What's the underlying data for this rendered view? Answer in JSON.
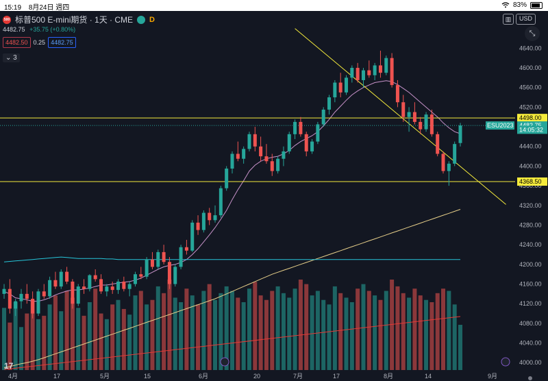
{
  "status_bar": {
    "time": "15:19",
    "date": "8月24日 週四",
    "wifi_icon": "wifi",
    "battery_percent": "83%",
    "battery_level": 0.83
  },
  "header": {
    "symbol_logo": "500",
    "title": "标普500 E-mini期货 · 1天 · CME",
    "market_badge": "D",
    "last_price": "4482.75",
    "change": "+35.75 (+0.80%)",
    "bid": "4482.50",
    "spread": "0.25",
    "ask": "4482.75",
    "collapse_count": "3"
  },
  "toolbar": {
    "currency": "USD",
    "chart_type_icon": "candle-icon",
    "expand_icon": "expand-icon"
  },
  "price_axis": {
    "ticks": [
      "4640.00",
      "4600.00",
      "4560.00",
      "4520.00",
      "4480.00",
      "4440.00",
      "4400.00",
      "4360.00",
      "4320.00",
      "4280.00",
      "4240.00",
      "4200.00",
      "4160.00",
      "4120.00",
      "4080.00",
      "4040.00",
      "4000.00"
    ],
    "labels": [
      {
        "text": "4498.00",
        "kind": "hline",
        "price": 4498
      },
      {
        "text": "4482.75",
        "kind": "last",
        "price": 4482.75
      },
      {
        "text": "14:05:32",
        "kind": "countdown",
        "price": 4474
      },
      {
        "text": "4368.50",
        "kind": "hline",
        "price": 4368.5
      }
    ],
    "contract_label": "ESU2023"
  },
  "time_axis": {
    "labels": [
      "4月",
      "17",
      "5月",
      "15",
      "6月",
      "20",
      "7月",
      "17",
      "8月",
      "14",
      "9月"
    ]
  },
  "colors": {
    "up": "#26a69a",
    "down": "#ef5350",
    "hline": "#f5eb3c",
    "trend": "#f5eb3c",
    "ma_short": "#c792c9",
    "ma_long": "#e8d08a",
    "ma_red": "#e53935",
    "blue_line": "#26c6da",
    "bg": "#131722"
  },
  "chart_data": {
    "type": "candlestick",
    "title": "标普500 E-mini期货 · 1天 · CME",
    "ylim": [
      3985,
      4660
    ],
    "horizontal_lines": [
      4498,
      4368.5
    ],
    "candles_ohlc": [
      [
        4140,
        4160,
        4130,
        4150
      ],
      [
        4150,
        4170,
        4100,
        4110
      ],
      [
        4110,
        4130,
        4095,
        4125
      ],
      [
        4125,
        4150,
        4110,
        4140
      ],
      [
        4140,
        4160,
        4120,
        4130
      ],
      [
        4130,
        4145,
        4090,
        4100
      ],
      [
        4100,
        4150,
        4095,
        4145
      ],
      [
        4145,
        4160,
        4130,
        4135
      ],
      [
        4135,
        4175,
        4130,
        4168
      ],
      [
        4168,
        4185,
        4150,
        4155
      ],
      [
        4155,
        4190,
        4150,
        4185
      ],
      [
        4185,
        4195,
        4160,
        4165
      ],
      [
        4165,
        4170,
        4110,
        4120
      ],
      [
        4120,
        4160,
        4115,
        4155
      ],
      [
        4155,
        4170,
        4140,
        4150
      ],
      [
        4150,
        4180,
        4145,
        4178
      ],
      [
        4178,
        4190,
        4165,
        4170
      ],
      [
        4170,
        4180,
        4140,
        4145
      ],
      [
        4145,
        4160,
        4135,
        4155
      ],
      [
        4155,
        4165,
        4140,
        4148
      ],
      [
        4148,
        4170,
        4140,
        4165
      ],
      [
        4165,
        4175,
        4145,
        4150
      ],
      [
        4150,
        4165,
        4135,
        4160
      ],
      [
        4160,
        4185,
        4155,
        4180
      ],
      [
        4180,
        4195,
        4170,
        4175
      ],
      [
        4175,
        4215,
        4170,
        4210
      ],
      [
        4210,
        4225,
        4190,
        4195
      ],
      [
        4195,
        4230,
        4190,
        4225
      ],
      [
        4225,
        4240,
        4200,
        4205
      ],
      [
        4205,
        4215,
        4150,
        4160
      ],
      [
        4160,
        4200,
        4155,
        4195
      ],
      [
        4195,
        4240,
        4190,
        4235
      ],
      [
        4235,
        4250,
        4220,
        4228
      ],
      [
        4228,
        4290,
        4225,
        4285
      ],
      [
        4285,
        4300,
        4260,
        4270
      ],
      [
        4270,
        4310,
        4265,
        4305
      ],
      [
        4305,
        4315,
        4280,
        4290
      ],
      [
        4290,
        4320,
        4285,
        4300
      ],
      [
        4300,
        4360,
        4295,
        4355
      ],
      [
        4355,
        4400,
        4350,
        4395
      ],
      [
        4395,
        4430,
        4385,
        4425
      ],
      [
        4425,
        4450,
        4410,
        4415
      ],
      [
        4415,
        4440,
        4405,
        4435
      ],
      [
        4435,
        4470,
        4430,
        4465
      ],
      [
        4465,
        4480,
        4430,
        4440
      ],
      [
        4440,
        4460,
        4410,
        4420
      ],
      [
        4420,
        4445,
        4405,
        4410
      ],
      [
        4410,
        4425,
        4380,
        4390
      ],
      [
        4390,
        4420,
        4385,
        4415
      ],
      [
        4415,
        4440,
        4400,
        4430
      ],
      [
        4430,
        4470,
        4425,
        4465
      ],
      [
        4465,
        4495,
        4455,
        4490
      ],
      [
        4490,
        4500,
        4460,
        4465
      ],
      [
        4465,
        4470,
        4420,
        4430
      ],
      [
        4430,
        4455,
        4425,
        4450
      ],
      [
        4450,
        4490,
        4445,
        4485
      ],
      [
        4485,
        4520,
        4480,
        4515
      ],
      [
        4515,
        4545,
        4505,
        4540
      ],
      [
        4540,
        4575,
        4530,
        4570
      ],
      [
        4570,
        4590,
        4540,
        4550
      ],
      [
        4550,
        4585,
        4545,
        4580
      ],
      [
        4580,
        4605,
        4570,
        4600
      ],
      [
        4600,
        4610,
        4570,
        4575
      ],
      [
        4575,
        4600,
        4560,
        4595
      ],
      [
        4595,
        4615,
        4580,
        4585
      ],
      [
        4585,
        4610,
        4575,
        4605
      ],
      [
        4605,
        4635,
        4580,
        4590
      ],
      [
        4590,
        4625,
        4585,
        4620
      ],
      [
        4620,
        4630,
        4560,
        4565
      ],
      [
        4565,
        4575,
        4520,
        4530
      ],
      [
        4530,
        4545,
        4490,
        4500
      ],
      [
        4500,
        4520,
        4470,
        4510
      ],
      [
        4510,
        4530,
        4485,
        4490
      ],
      [
        4490,
        4500,
        4465,
        4475
      ],
      [
        4475,
        4510,
        4470,
        4505
      ],
      [
        4505,
        4515,
        4460,
        4465
      ],
      [
        4465,
        4470,
        4420,
        4425
      ],
      [
        4425,
        4430,
        4385,
        4390
      ],
      [
        4390,
        4410,
        4360,
        4405
      ],
      [
        4405,
        4450,
        4400,
        4445
      ],
      [
        4447,
        4488,
        4440,
        4482.75
      ]
    ],
    "volume": [
      55,
      42,
      60,
      38,
      50,
      62,
      45,
      48,
      58,
      66,
      52,
      70,
      64,
      55,
      48,
      60,
      72,
      50,
      45,
      58,
      62,
      54,
      49,
      66,
      70,
      58,
      62,
      74,
      68,
      80,
      64,
      60,
      72,
      66,
      58,
      70,
      76,
      62,
      68,
      74,
      70,
      64,
      60,
      72,
      78,
      66,
      62,
      70,
      74,
      68,
      64,
      72,
      80,
      76,
      66,
      70,
      62,
      58,
      74,
      68,
      64,
      60,
      72,
      76,
      70,
      66,
      62,
      70,
      80,
      74,
      68,
      64,
      72,
      66,
      62,
      60,
      68,
      72,
      70,
      58,
      40
    ],
    "series": [
      {
        "name": "MA short",
        "values": [
          4145,
          4140,
          4132,
          4130,
          4128,
          4125,
          4125,
          4128,
          4132,
          4138,
          4142,
          4146,
          4148,
          4148,
          4150,
          4152,
          4155,
          4158,
          4158,
          4160,
          4162,
          4164,
          4165,
          4168,
          4172,
          4178,
          4184,
          4190,
          4195,
          4198,
          4200,
          4204,
          4210,
          4220,
          4232,
          4246,
          4260,
          4275,
          4292,
          4310,
          4332,
          4352,
          4370,
          4390,
          4402,
          4410,
          4415,
          4418,
          4420,
          4425,
          4432,
          4442,
          4450,
          4456,
          4462,
          4470,
          4482,
          4495,
          4510,
          4522,
          4534,
          4545,
          4553,
          4560,
          4565,
          4570,
          4572,
          4574,
          4572,
          4566,
          4558,
          4550,
          4540,
          4530,
          4520,
          4510,
          4500,
          4488,
          4478,
          4470,
          4466
        ]
      },
      {
        "name": "MA long",
        "values": [
          3990,
          3992,
          3995,
          3998,
          4000,
          4003,
          4006,
          4010,
          4014,
          4018,
          4022,
          4026,
          4030,
          4034,
          4038,
          4042,
          4046,
          4050,
          4054,
          4058,
          4062,
          4066,
          4070,
          4074,
          4078,
          4082,
          4086,
          4090,
          4094,
          4098,
          4102,
          4106,
          4110,
          4114,
          4118,
          4122,
          4126,
          4130,
          4135,
          4140,
          4145,
          4150,
          4155,
          4160,
          4165,
          4170,
          4175,
          4180,
          4184,
          4188,
          4192,
          4196,
          4200,
          4204,
          4208,
          4212,
          4216,
          4220,
          4224,
          4228,
          4232,
          4236,
          4240,
          4244,
          4248,
          4252,
          4256,
          4260,
          4264,
          4268,
          4272,
          4276,
          4280,
          4284,
          4288,
          4292,
          4296,
          4300,
          4304,
          4308,
          4312
        ]
      },
      {
        "name": "Flat line",
        "values": [
          4205,
          4206,
          4207,
          4208,
          4209,
          4210,
          4211,
          4212,
          4213,
          4214,
          4215,
          4214,
          4213,
          4212,
          4212,
          4212,
          4212,
          4212,
          4211,
          4211,
          4210,
          4210,
          4210,
          4210,
          4210,
          4210,
          4210,
          4210,
          4210,
          4210,
          4210,
          4210,
          4210,
          4210,
          4210,
          4210,
          4210,
          4210,
          4210,
          4210,
          4210,
          4210,
          4210,
          4210,
          4210,
          4210,
          4210,
          4210,
          4210,
          4210,
          4210,
          4210,
          4210,
          4210,
          4210,
          4210,
          4210,
          4210,
          4210,
          4210,
          4210,
          4210,
          4210,
          4210,
          4210,
          4210,
          4210,
          4210,
          4210,
          4210,
          4210,
          4210,
          4210,
          4210,
          4210,
          4210,
          4210,
          4210,
          4210,
          4210,
          4210
        ]
      }
    ],
    "volume_ma_range": [
      3986,
      4094
    ],
    "trendline": {
      "from": [
        4680,
        51
      ],
      "to": [
        4322,
        88
      ]
    }
  }
}
